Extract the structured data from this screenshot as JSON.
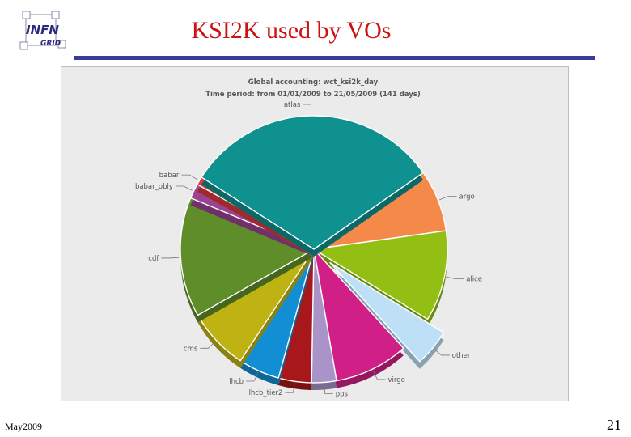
{
  "slide": {
    "title": "KSI2K used by VOs",
    "footer_date": "May2009",
    "page_number": "21"
  },
  "logo": {
    "text_main": "INFN",
    "text_sub": "GRID"
  },
  "colors": {
    "title": "#cc1111",
    "rule": "#3a3a9a"
  },
  "chart_data": {
    "type": "pie",
    "title": "Global accounting: wct_ksi2k_day",
    "subtitle": "Time period: from 01/01/2009 to 21/05/2009 (141 days)",
    "exploded": "other",
    "slices": [
      {
        "label": "argo",
        "value": 7.5,
        "color": "#f5894a"
      },
      {
        "label": "alice",
        "value": 11.0,
        "color": "#93bf14"
      },
      {
        "label": "other",
        "value": 4.5,
        "color": "#bde0f7"
      },
      {
        "label": "virgo",
        "value": 9.0,
        "color": "#d01f86"
      },
      {
        "label": "pps",
        "value": 3.0,
        "color": "#aa93c8"
      },
      {
        "label": "lhcb_tier2",
        "value": 4.0,
        "color": "#a8181b"
      },
      {
        "label": "lhcb",
        "value": 5.0,
        "color": "#128fd4"
      },
      {
        "label": "cms",
        "value": 7.5,
        "color": "#bfb313"
      },
      {
        "label": "cdf",
        "value": 14.5,
        "color": "#5f8d2a"
      },
      {
        "label": "babar_obly",
        "value": 1.8,
        "color": "#9b4393"
      },
      {
        "label": "babar",
        "value": 1.0,
        "color": "#de3a3c"
      },
      {
        "label": "atlas",
        "value": 31.2,
        "color": "#0f918f"
      }
    ]
  }
}
